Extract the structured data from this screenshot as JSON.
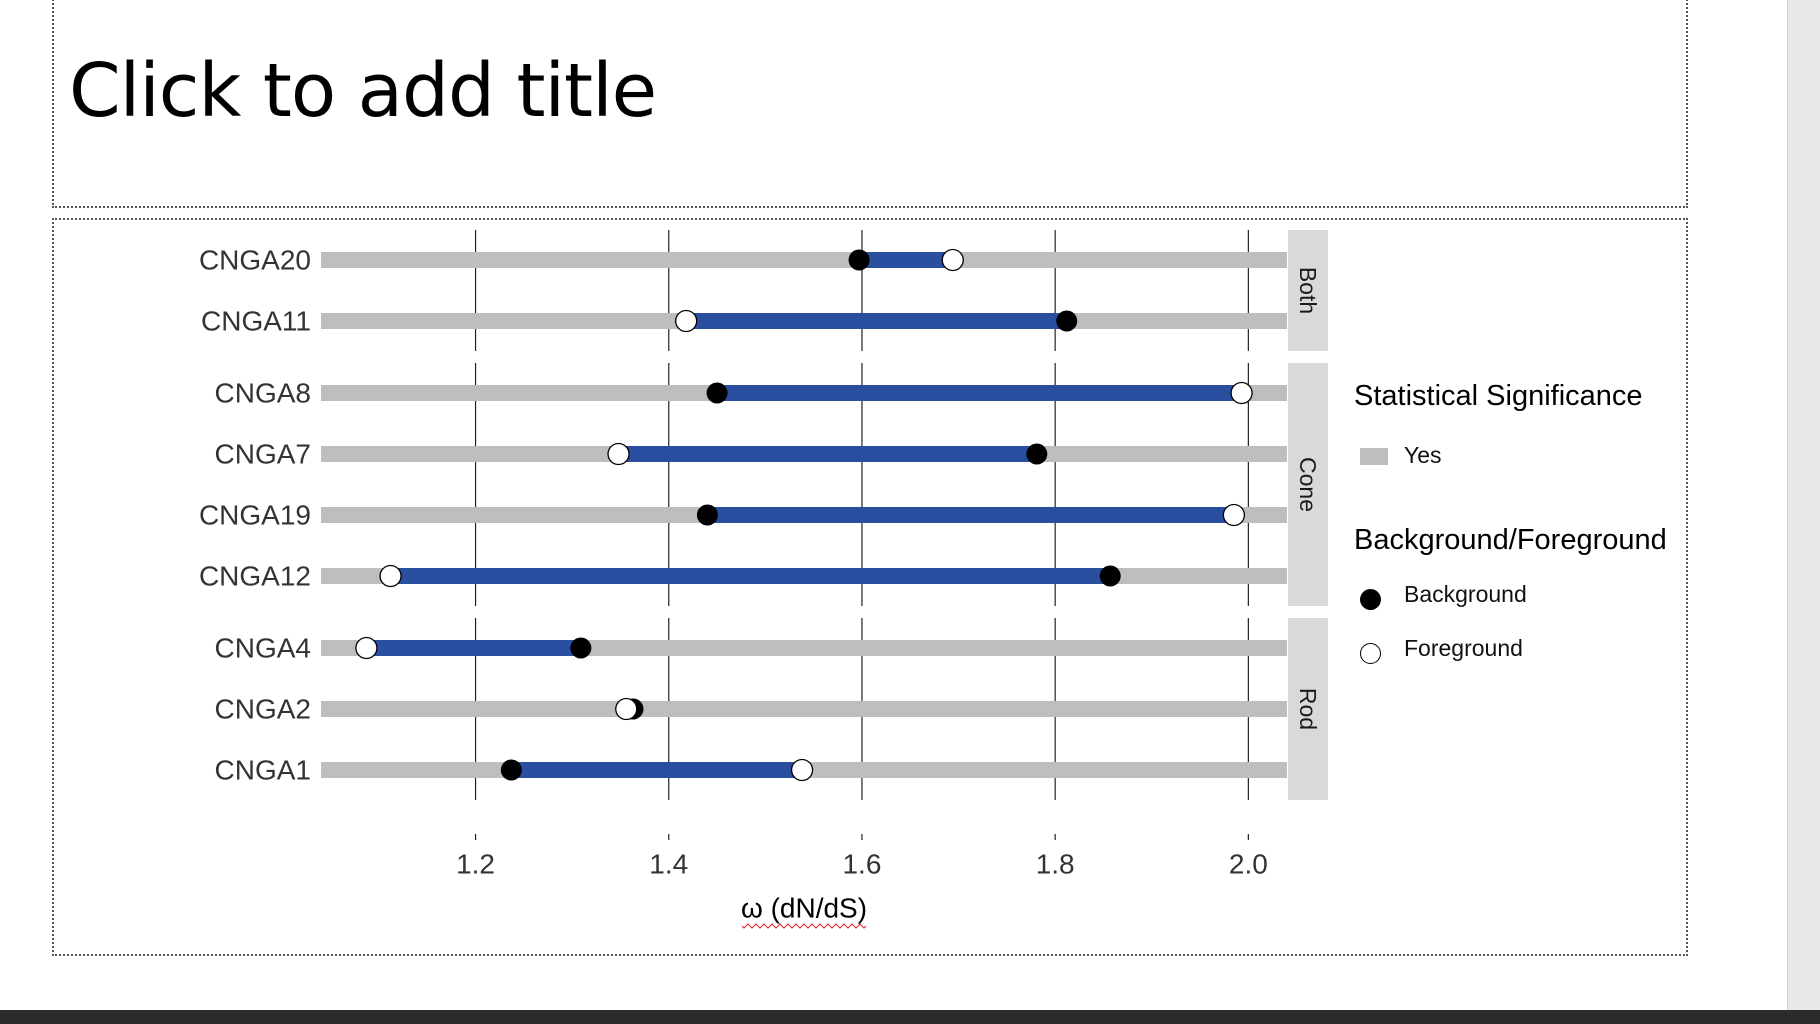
{
  "slide": {
    "title_placeholder": "Click to add title"
  },
  "colors": {
    "background_track": "#bebebe",
    "interval_bar": "#2b4fa0",
    "facet_strip": "#d9d9d9",
    "background_dot": "#000000",
    "foreground_dot": "#ffffff"
  },
  "legend": {
    "significance_title": "Statistical Significance",
    "significance_items": [
      "Yes"
    ],
    "group_title": "Background/Foreground",
    "group_items": [
      "Background",
      "Foreground"
    ]
  },
  "chart_data": {
    "type": "dumbbell",
    "xlabel": "ω (dN/dS)",
    "xlim": [
      1.04,
      2.04
    ],
    "xticks": [
      "1.2",
      "1.4",
      "1.6",
      "1.8",
      "2.0"
    ],
    "grid": "vertical major lines",
    "legend_position": "right",
    "facets": [
      {
        "label": "Both",
        "rows": [
          {
            "gene": "CNGA20",
            "background": 1.597,
            "foreground": 1.694,
            "significant": "Yes"
          },
          {
            "gene": "CNGA11",
            "background": 1.812,
            "foreground": 1.418,
            "significant": "Yes"
          }
        ]
      },
      {
        "label": "Cone",
        "rows": [
          {
            "gene": "CNGA8",
            "background": 1.45,
            "foreground": 1.993,
            "significant": "Yes"
          },
          {
            "gene": "CNGA7",
            "background": 1.781,
            "foreground": 1.348,
            "significant": "Yes"
          },
          {
            "gene": "CNGA19",
            "background": 1.44,
            "foreground": 1.985,
            "significant": "Yes"
          },
          {
            "gene": "CNGA12",
            "background": 1.857,
            "foreground": 1.112,
            "significant": "Yes"
          }
        ]
      },
      {
        "label": "Rod",
        "rows": [
          {
            "gene": "CNGA4",
            "background": 1.309,
            "foreground": 1.087,
            "significant": "Yes"
          },
          {
            "gene": "CNGA2",
            "background": 1.363,
            "foreground": 1.356,
            "significant": "Yes"
          },
          {
            "gene": "CNGA1",
            "background": 1.237,
            "foreground": 1.538,
            "significant": "Yes"
          }
        ]
      }
    ]
  }
}
